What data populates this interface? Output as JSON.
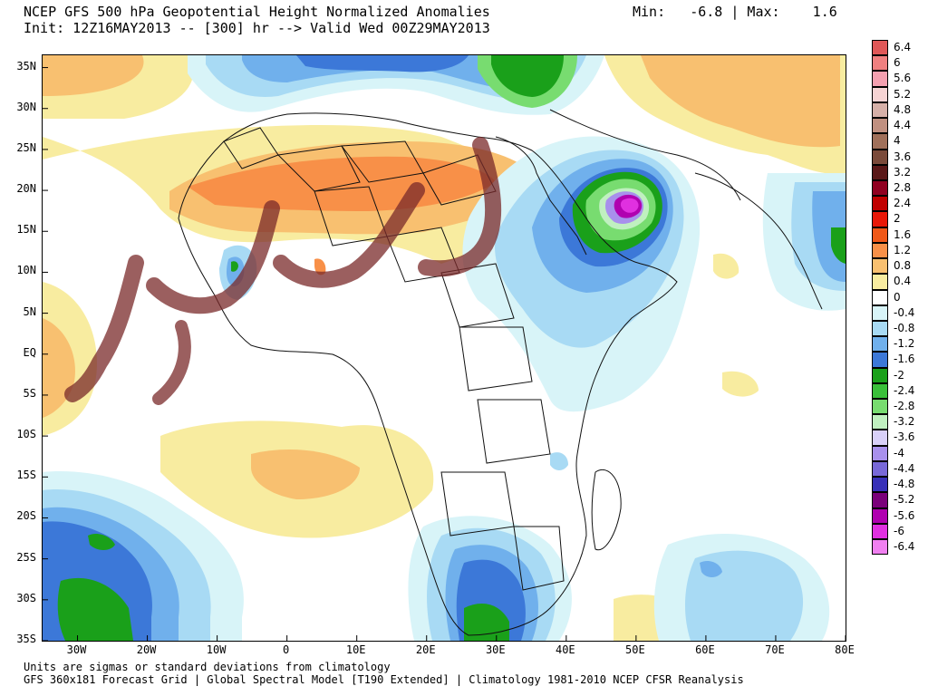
{
  "header": {
    "title": "NCEP GFS 500 hPa Geopotential Height Normalized Anomalies",
    "init": "Init: 12Z16MAY2013 -- [300] hr --> Valid Wed 00Z29MAY2013",
    "minmax": "Min:   -6.8 | Max:    1.6"
  },
  "footer": {
    "line1": "Units are sigmas or standard deviations from climatology",
    "line2": "GFS 360x181 Forecast Grid | Global Spectral Model [T190 Extended] | Climatology 1981-2010 NCEP CFSR Reanalysis"
  },
  "axes": {
    "lat_labels": [
      "35N",
      "30N",
      "25N",
      "20N",
      "15N",
      "10N",
      "5N",
      "EQ",
      "5S",
      "10S",
      "15S",
      "20S",
      "25S",
      "30S",
      "35S"
    ],
    "lat_values": [
      35,
      30,
      25,
      20,
      15,
      10,
      5,
      0,
      -5,
      -10,
      -15,
      -20,
      -25,
      -30,
      -35
    ],
    "lon_labels": [
      "30W",
      "20W",
      "10W",
      "0",
      "10E",
      "20E",
      "30E",
      "40E",
      "50E",
      "60E",
      "70E",
      "80E"
    ],
    "lon_values": [
      -30,
      -20,
      -10,
      0,
      10,
      20,
      30,
      40,
      50,
      60,
      70,
      80
    ],
    "lat_range": [
      -35,
      36.5
    ],
    "lon_range": [
      -35,
      80
    ]
  },
  "colorbar": {
    "labels": [
      "6.4",
      "6",
      "5.6",
      "5.2",
      "4.8",
      "4.4",
      "4",
      "3.6",
      "3.2",
      "2.8",
      "2.4",
      "2",
      "1.6",
      "1.2",
      "0.8",
      "0.4",
      "0",
      "-0.4",
      "-0.8",
      "-1.2",
      "-1.6",
      "-2",
      "-2.4",
      "-2.8",
      "-3.2",
      "-3.6",
      "-4",
      "-4.4",
      "-4.8",
      "-5.2",
      "-5.6",
      "-6",
      "-6.4"
    ],
    "colors": [
      "#e05858",
      "#f08080",
      "#f4a0b0",
      "#f6d4d4",
      "#d6b0a8",
      "#c09080",
      "#a0705a",
      "#7a4a3a",
      "#5a1818",
      "#900020",
      "#c00000",
      "#e81808",
      "#f05818",
      "#f89048",
      "#f8c070",
      "#f8eca0",
      "#ffffff",
      "#d8f4f8",
      "#a8daf4",
      "#70b0ec",
      "#3c78d8",
      "#1aa01a",
      "#3ac03a",
      "#78dc70",
      "#c0f0c0",
      "#d8d0f8",
      "#a890ec",
      "#7868d8",
      "#3830b8",
      "#7a007a",
      "#b000b0",
      "#e030e0",
      "#f080f0"
    ]
  },
  "map_colors": {
    "land_border": "#111111",
    "pos_light": "#f8eca0",
    "pos_med": "#f8c070",
    "pos_strong": "#f89048",
    "neg_light": "#d8f4f8",
    "neg_med": "#a8daf4",
    "neg_strong": "#70b0ec",
    "neg_deep": "#3c78d8",
    "green": "#1aa01a",
    "green_light": "#78dc70",
    "purple": "#7868d8",
    "magenta": "#e030e0"
  },
  "watermark": {
    "color": "#7a2a2a"
  }
}
